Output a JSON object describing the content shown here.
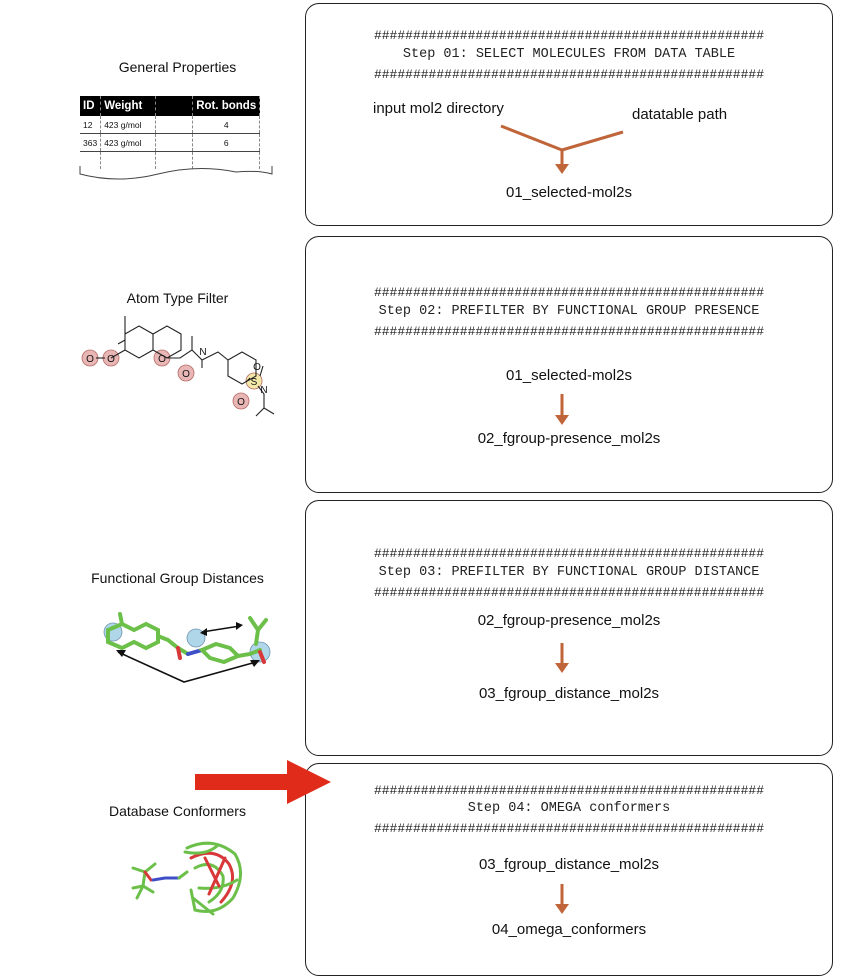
{
  "left_panels": [
    {
      "title": "General Properties"
    },
    {
      "title": "Atom Type Filter"
    },
    {
      "title": "Functional Group Distances"
    },
    {
      "title": "Database Conformers"
    }
  ],
  "properties_table": {
    "headers": [
      "ID",
      "Weight",
      "",
      "Rot. bonds"
    ],
    "rows": [
      [
        "12",
        "423 g/mol",
        "",
        "4"
      ],
      [
        "363",
        "423 g/mol",
        "",
        "6"
      ],
      [
        "",
        "",
        "",
        ""
      ]
    ]
  },
  "molecule_atoms": {
    "o1": "O",
    "o2": "O",
    "o3": "O",
    "o4": "O",
    "o5": "O",
    "o6": "O",
    "n1": "N",
    "n2": "N",
    "s1": "S"
  },
  "hash_line": "##################################################",
  "steps": [
    {
      "title": "Step 01: SELECT MOLECULES FROM DATA TABLE",
      "inputs": [
        "input mol2 directory",
        "datatable path"
      ],
      "output": "01_selected-mol2s"
    },
    {
      "title": "Step 02: PREFILTER BY FUNCTIONAL GROUP PRESENCE",
      "input": "01_selected-mol2s",
      "output": "02_fgroup-presence_mol2s"
    },
    {
      "title": "Step 03: PREFILTER BY FUNCTIONAL GROUP DISTANCE",
      "input": "02_fgroup-presence_mol2s",
      "output": "03_fgroup_distance_mol2s"
    },
    {
      "title": "Step 04: OMEGA conformers",
      "input": "03_fgroup_distance_mol2s",
      "output": "04_omega_conformers"
    }
  ],
  "colors": {
    "flow_arrow": "#c0653a",
    "highlight_arrow": "#e02a1a",
    "atom_highlight": "#e8b7b5",
    "distance_highlight": "#a8d2e8",
    "stick_carbon": "#6cc04a",
    "stick_oxygen": "#d8383a",
    "stick_nitrogen": "#3f4fc8"
  },
  "icons": [
    "down-arrow-icon",
    "merge-arrow-icon",
    "current-step-arrow-icon"
  ]
}
